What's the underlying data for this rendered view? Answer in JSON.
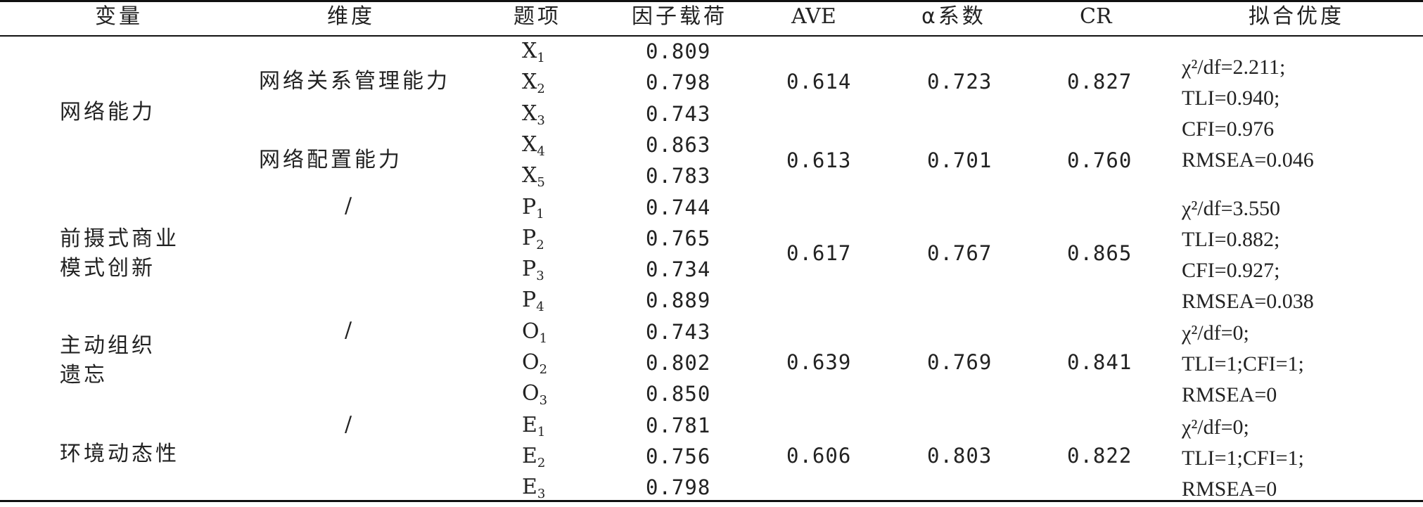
{
  "header": {
    "variable": "变量",
    "dimension": "维度",
    "item": "题项",
    "loading": "因子载荷",
    "ave": "AVE",
    "alpha": "α系数",
    "cr": "CR",
    "fit": "拟合优度"
  },
  "rows": [
    {
      "item": "X",
      "sub": "1",
      "loading": "0.809"
    },
    {
      "item": "X",
      "sub": "2",
      "loading": "0.798"
    },
    {
      "item": "X",
      "sub": "3",
      "loading": "0.743"
    },
    {
      "item": "X",
      "sub": "4",
      "loading": "0.863"
    },
    {
      "item": "X",
      "sub": "5",
      "loading": "0.783"
    },
    {
      "item": "P",
      "sub": "1",
      "loading": "0.744"
    },
    {
      "item": "P",
      "sub": "2",
      "loading": "0.765"
    },
    {
      "item": "P",
      "sub": "3",
      "loading": "0.734"
    },
    {
      "item": "P",
      "sub": "4",
      "loading": "0.889"
    },
    {
      "item": "O",
      "sub": "1",
      "loading": "0.743"
    },
    {
      "item": "O",
      "sub": "2",
      "loading": "0.802"
    },
    {
      "item": "O",
      "sub": "3",
      "loading": "0.850"
    },
    {
      "item": "E",
      "sub": "1",
      "loading": "0.781"
    },
    {
      "item": "E",
      "sub": "2",
      "loading": "0.756"
    },
    {
      "item": "E",
      "sub": "3",
      "loading": "0.798"
    }
  ],
  "variables": {
    "network": "网络能力",
    "pbm_1": "前摄式商业",
    "pbm_2": "模式创新",
    "forget_1": "主动组织",
    "forget_2": "遗忘",
    "env": "环境动态性"
  },
  "dimensions": {
    "relation": "网络关系管理能力",
    "config": "网络配置能力",
    "slash_pbm": "/",
    "slash_forget": "/",
    "slash_env": "/"
  },
  "groups": {
    "relation": {
      "ave": "0.614",
      "alpha": "0.723",
      "cr": "0.827"
    },
    "config": {
      "ave": "0.613",
      "alpha": "0.701",
      "cr": "0.760"
    },
    "pbm": {
      "ave": "0.617",
      "alpha": "0.767",
      "cr": "0.865"
    },
    "forget": {
      "ave": "0.639",
      "alpha": "0.769",
      "cr": "0.841"
    },
    "env": {
      "ave": "0.606",
      "alpha": "0.803",
      "cr": "0.822"
    }
  },
  "fit": {
    "network": [
      "χ²/df=2.211;",
      "TLI=0.940;",
      "CFI=0.976",
      "RMSEA=0.046"
    ],
    "pbm": [
      "χ²/df=3.550",
      "TLI=0.882;",
      "CFI=0.927;",
      "RMSEA=0.038"
    ],
    "forget": [
      "χ²/df=0;",
      "TLI=1;CFI=1;",
      "RMSEA=0"
    ],
    "env": [
      "χ²/df=0;",
      "TLI=1;CFI=1;",
      "RMSEA=0"
    ]
  }
}
